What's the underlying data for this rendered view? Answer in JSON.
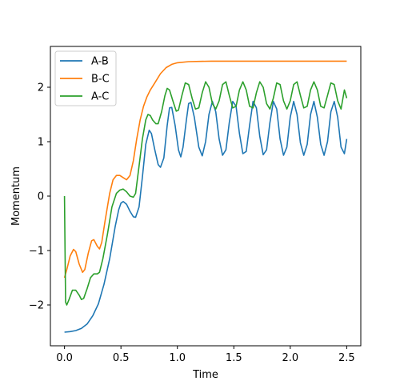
{
  "chart_data": {
    "type": "line",
    "xlabel": "Time",
    "ylabel": "Momentum",
    "xlim": [
      -0.125,
      2.625
    ],
    "ylim": [
      -2.75,
      2.75
    ],
    "xticks": [
      0.0,
      0.5,
      1.0,
      1.5,
      2.0,
      2.5
    ],
    "xtick_labels": [
      "0.0",
      "0.5",
      "1.0",
      "1.5",
      "2.0",
      "2.5"
    ],
    "yticks": [
      -2,
      -1,
      0,
      1,
      2
    ],
    "ytick_labels": [
      "−2",
      "−1",
      "0",
      "1",
      "2"
    ],
    "grid": false,
    "legend_position": "top-left",
    "series": [
      {
        "name": "A-B",
        "color": "#1f77b4",
        "points": [
          [
            0.0,
            -2.5
          ],
          [
            0.05,
            -2.49
          ],
          [
            0.1,
            -2.47
          ],
          [
            0.15,
            -2.43
          ],
          [
            0.2,
            -2.35
          ],
          [
            0.25,
            -2.2
          ],
          [
            0.3,
            -1.98
          ],
          [
            0.35,
            -1.62
          ],
          [
            0.4,
            -1.15
          ],
          [
            0.45,
            -0.55
          ],
          [
            0.48,
            -0.25
          ],
          [
            0.5,
            -0.13
          ],
          [
            0.52,
            -0.1
          ],
          [
            0.55,
            -0.15
          ],
          [
            0.58,
            -0.28
          ],
          [
            0.61,
            -0.38
          ],
          [
            0.63,
            -0.39
          ],
          [
            0.66,
            -0.2
          ],
          [
            0.69,
            0.35
          ],
          [
            0.72,
            0.95
          ],
          [
            0.75,
            1.21
          ],
          [
            0.77,
            1.15
          ],
          [
            0.8,
            0.85
          ],
          [
            0.83,
            0.58
          ],
          [
            0.85,
            0.53
          ],
          [
            0.88,
            0.7
          ],
          [
            0.91,
            1.3
          ],
          [
            0.93,
            1.62
          ],
          [
            0.95,
            1.63
          ],
          [
            0.98,
            1.3
          ],
          [
            1.01,
            0.85
          ],
          [
            1.03,
            0.72
          ],
          [
            1.05,
            0.9
          ],
          [
            1.08,
            1.4
          ],
          [
            1.1,
            1.7
          ],
          [
            1.12,
            1.72
          ],
          [
            1.15,
            1.45
          ],
          [
            1.19,
            0.9
          ],
          [
            1.22,
            0.74
          ],
          [
            1.25,
            1.0
          ],
          [
            1.28,
            1.5
          ],
          [
            1.31,
            1.74
          ],
          [
            1.34,
            1.55
          ],
          [
            1.37,
            1.05
          ],
          [
            1.4,
            0.75
          ],
          [
            1.43,
            0.85
          ],
          [
            1.46,
            1.35
          ],
          [
            1.49,
            1.74
          ],
          [
            1.52,
            1.65
          ],
          [
            1.55,
            1.15
          ],
          [
            1.58,
            0.78
          ],
          [
            1.61,
            0.82
          ],
          [
            1.64,
            1.3
          ],
          [
            1.67,
            1.74
          ],
          [
            1.7,
            1.62
          ],
          [
            1.73,
            1.1
          ],
          [
            1.76,
            0.76
          ],
          [
            1.79,
            0.85
          ],
          [
            1.82,
            1.35
          ],
          [
            1.85,
            1.74
          ],
          [
            1.88,
            1.6
          ],
          [
            1.91,
            1.05
          ],
          [
            1.94,
            0.75
          ],
          [
            1.97,
            0.9
          ],
          [
            2.0,
            1.45
          ],
          [
            2.03,
            1.74
          ],
          [
            2.06,
            1.5
          ],
          [
            2.09,
            0.98
          ],
          [
            2.12,
            0.75
          ],
          [
            2.15,
            0.95
          ],
          [
            2.18,
            1.5
          ],
          [
            2.21,
            1.74
          ],
          [
            2.24,
            1.45
          ],
          [
            2.27,
            0.95
          ],
          [
            2.3,
            0.75
          ],
          [
            2.33,
            1.0
          ],
          [
            2.36,
            1.55
          ],
          [
            2.39,
            1.74
          ],
          [
            2.42,
            1.45
          ],
          [
            2.45,
            0.9
          ],
          [
            2.48,
            0.78
          ],
          [
            2.5,
            1.05
          ]
        ]
      },
      {
        "name": "B-C",
        "color": "#ff7f0e",
        "points": [
          [
            0.0,
            -1.5
          ],
          [
            0.02,
            -1.35
          ],
          [
            0.05,
            -1.1
          ],
          [
            0.08,
            -0.98
          ],
          [
            0.1,
            -1.02
          ],
          [
            0.13,
            -1.25
          ],
          [
            0.16,
            -1.4
          ],
          [
            0.18,
            -1.35
          ],
          [
            0.21,
            -1.05
          ],
          [
            0.24,
            -0.82
          ],
          [
            0.26,
            -0.8
          ],
          [
            0.29,
            -0.92
          ],
          [
            0.31,
            -0.97
          ],
          [
            0.33,
            -0.85
          ],
          [
            0.36,
            -0.45
          ],
          [
            0.4,
            0.05
          ],
          [
            0.43,
            0.3
          ],
          [
            0.46,
            0.38
          ],
          [
            0.49,
            0.38
          ],
          [
            0.52,
            0.34
          ],
          [
            0.55,
            0.3
          ],
          [
            0.58,
            0.38
          ],
          [
            0.61,
            0.65
          ],
          [
            0.64,
            1.05
          ],
          [
            0.67,
            1.4
          ],
          [
            0.7,
            1.65
          ],
          [
            0.73,
            1.82
          ],
          [
            0.76,
            1.95
          ],
          [
            0.8,
            2.08
          ],
          [
            0.85,
            2.25
          ],
          [
            0.9,
            2.36
          ],
          [
            0.95,
            2.42
          ],
          [
            1.0,
            2.45
          ],
          [
            1.1,
            2.47
          ],
          [
            1.3,
            2.48
          ],
          [
            1.6,
            2.48
          ],
          [
            2.0,
            2.48
          ],
          [
            2.5,
            2.48
          ]
        ]
      },
      {
        "name": "A-C",
        "color": "#2ca02c",
        "points": [
          [
            0.0,
            0.0
          ],
          [
            0.005,
            -1.0
          ],
          [
            0.01,
            -1.95
          ],
          [
            0.02,
            -2.0
          ],
          [
            0.04,
            -1.9
          ],
          [
            0.07,
            -1.73
          ],
          [
            0.1,
            -1.73
          ],
          [
            0.13,
            -1.82
          ],
          [
            0.15,
            -1.9
          ],
          [
            0.17,
            -1.88
          ],
          [
            0.2,
            -1.7
          ],
          [
            0.23,
            -1.5
          ],
          [
            0.26,
            -1.43
          ],
          [
            0.29,
            -1.43
          ],
          [
            0.31,
            -1.4
          ],
          [
            0.34,
            -1.15
          ],
          [
            0.38,
            -0.7
          ],
          [
            0.42,
            -0.2
          ],
          [
            0.46,
            0.05
          ],
          [
            0.49,
            0.11
          ],
          [
            0.52,
            0.13
          ],
          [
            0.55,
            0.08
          ],
          [
            0.58,
            0.0
          ],
          [
            0.61,
            -0.02
          ],
          [
            0.63,
            0.05
          ],
          [
            0.66,
            0.55
          ],
          [
            0.69,
            1.05
          ],
          [
            0.72,
            1.4
          ],
          [
            0.74,
            1.5
          ],
          [
            0.76,
            1.48
          ],
          [
            0.78,
            1.4
          ],
          [
            0.81,
            1.33
          ],
          [
            0.83,
            1.33
          ],
          [
            0.86,
            1.55
          ],
          [
            0.89,
            1.85
          ],
          [
            0.91,
            1.98
          ],
          [
            0.93,
            1.95
          ],
          [
            0.96,
            1.75
          ],
          [
            0.99,
            1.56
          ],
          [
            1.01,
            1.58
          ],
          [
            1.04,
            1.85
          ],
          [
            1.07,
            2.08
          ],
          [
            1.1,
            2.05
          ],
          [
            1.13,
            1.8
          ],
          [
            1.16,
            1.6
          ],
          [
            1.19,
            1.62
          ],
          [
            1.22,
            1.9
          ],
          [
            1.25,
            2.1
          ],
          [
            1.28,
            2.0
          ],
          [
            1.31,
            1.7
          ],
          [
            1.34,
            1.6
          ],
          [
            1.37,
            1.75
          ],
          [
            1.4,
            2.05
          ],
          [
            1.43,
            2.1
          ],
          [
            1.46,
            1.85
          ],
          [
            1.49,
            1.62
          ],
          [
            1.52,
            1.65
          ],
          [
            1.55,
            1.95
          ],
          [
            1.58,
            2.1
          ],
          [
            1.61,
            1.95
          ],
          [
            1.64,
            1.65
          ],
          [
            1.67,
            1.62
          ],
          [
            1.7,
            1.9
          ],
          [
            1.73,
            2.1
          ],
          [
            1.76,
            2.0
          ],
          [
            1.79,
            1.7
          ],
          [
            1.82,
            1.6
          ],
          [
            1.85,
            1.8
          ],
          [
            1.88,
            2.08
          ],
          [
            1.91,
            2.05
          ],
          [
            1.94,
            1.75
          ],
          [
            1.97,
            1.6
          ],
          [
            2.0,
            1.75
          ],
          [
            2.03,
            2.05
          ],
          [
            2.06,
            2.1
          ],
          [
            2.09,
            1.85
          ],
          [
            2.12,
            1.62
          ],
          [
            2.15,
            1.65
          ],
          [
            2.18,
            1.95
          ],
          [
            2.21,
            2.1
          ],
          [
            2.24,
            1.95
          ],
          [
            2.27,
            1.65
          ],
          [
            2.3,
            1.62
          ],
          [
            2.33,
            1.85
          ],
          [
            2.36,
            2.08
          ],
          [
            2.39,
            2.05
          ],
          [
            2.42,
            1.75
          ],
          [
            2.45,
            1.6
          ],
          [
            2.48,
            1.95
          ],
          [
            2.5,
            1.8
          ]
        ]
      }
    ]
  }
}
